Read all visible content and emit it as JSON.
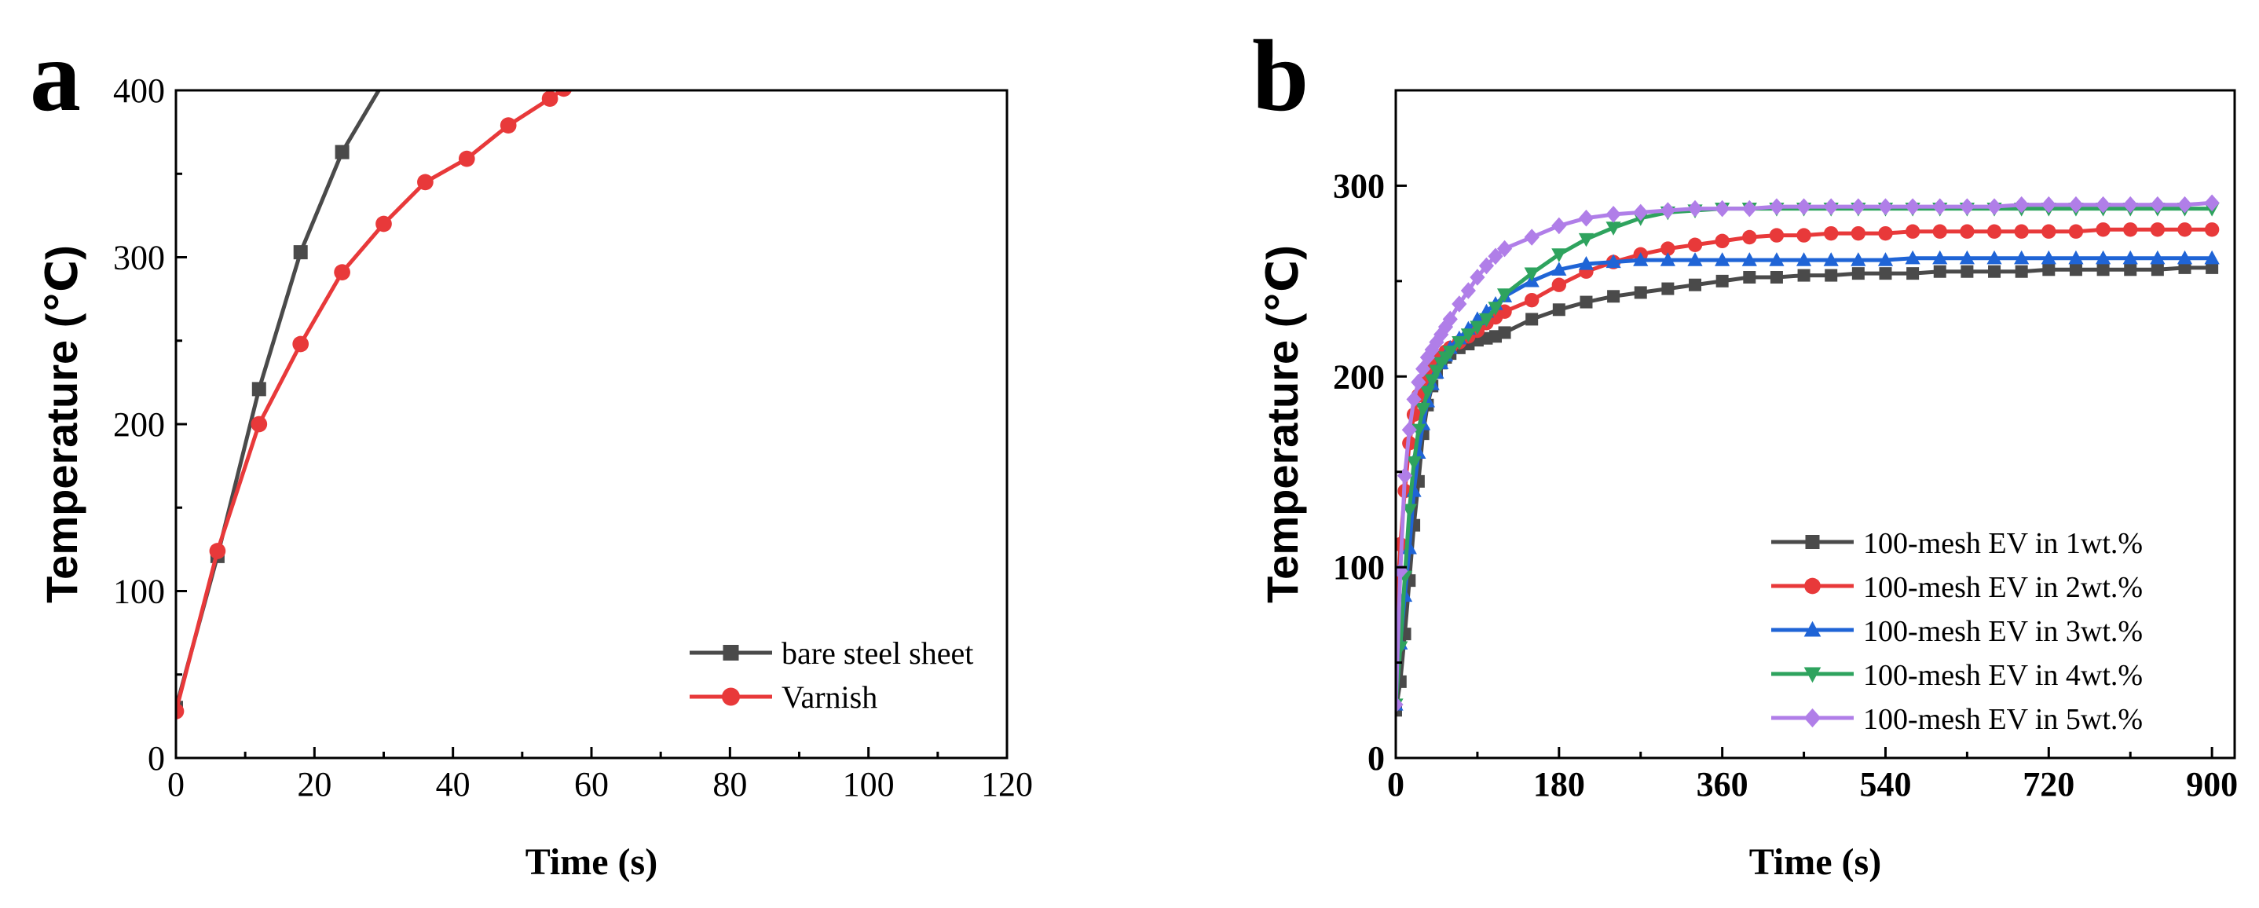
{
  "chart_data": [
    {
      "panel_label": "a",
      "type": "line",
      "title": "",
      "xlabel": "Time (s)",
      "ylabel": "Temperature (℃)",
      "xlim": [
        0,
        120
      ],
      "ylim": [
        0,
        400
      ],
      "xticks": [
        0,
        20,
        40,
        60,
        80,
        100,
        120
      ],
      "yticks": [
        0,
        100,
        200,
        300,
        400
      ],
      "grid": false,
      "legend_position": "bottom-right",
      "series": [
        {
          "name": "bare steel sheet",
          "color": "#4a4a4a",
          "marker": "square",
          "x": [
            0,
            6,
            12,
            18,
            24,
            30
          ],
          "y": [
            30,
            121,
            221,
            303,
            363,
            405
          ]
        },
        {
          "name": "Varnish",
          "color": "#e8393a",
          "marker": "circle",
          "x": [
            0,
            6,
            12,
            18,
            24,
            30,
            36,
            42,
            48,
            54,
            56
          ],
          "y": [
            28,
            124,
            200,
            248,
            291,
            320,
            345,
            359,
            379,
            395,
            401
          ]
        }
      ]
    },
    {
      "panel_label": "b",
      "type": "line",
      "title": "",
      "xlabel": "Time (s)",
      "ylabel": "Temperature (℃)",
      "xlim": [
        0,
        925
      ],
      "ylim": [
        0,
        350
      ],
      "xticks": [
        0,
        180,
        360,
        540,
        720,
        900
      ],
      "yticks": [
        0,
        100,
        200,
        300
      ],
      "grid": false,
      "legend_position": "bottom-right",
      "series": [
        {
          "name": "100-mesh EV in 1wt.%",
          "color": "#4a4a4a",
          "marker": "square",
          "x": [
            0,
            5,
            10,
            15,
            20,
            25,
            30,
            35,
            40,
            45,
            50,
            55,
            60,
            70,
            80,
            90,
            100,
            110,
            120,
            150,
            180,
            210,
            240,
            270,
            300,
            330,
            360,
            390,
            420,
            450,
            480,
            510,
            540,
            570,
            600,
            630,
            660,
            690,
            720,
            750,
            780,
            810,
            840,
            870,
            900
          ],
          "y": [
            25,
            40,
            65,
            93,
            122,
            145,
            170,
            185,
            195,
            202,
            207,
            210,
            212,
            215,
            217,
            219,
            220,
            221,
            223,
            230,
            235,
            239,
            242,
            244,
            246,
            248,
            250,
            252,
            252,
            253,
            253,
            254,
            254,
            254,
            255,
            255,
            255,
            255,
            256,
            256,
            256,
            256,
            256,
            257,
            257
          ]
        },
        {
          "name": "100-mesh EV in 2wt.%",
          "color": "#e8393a",
          "marker": "circle",
          "x": [
            0,
            5,
            10,
            15,
            20,
            25,
            30,
            35,
            40,
            45,
            50,
            55,
            60,
            70,
            80,
            90,
            100,
            110,
            120,
            150,
            180,
            210,
            240,
            270,
            300,
            330,
            360,
            390,
            420,
            450,
            480,
            510,
            540,
            570,
            600,
            630,
            660,
            690,
            720,
            750,
            780,
            810,
            840,
            870,
            900
          ],
          "y": [
            65,
            112,
            140,
            165,
            180,
            190,
            197,
            202,
            206,
            209,
            211,
            213,
            215,
            218,
            221,
            224,
            228,
            231,
            234,
            240,
            248,
            255,
            260,
            264,
            267,
            269,
            271,
            273,
            274,
            274,
            275,
            275,
            275,
            276,
            276,
            276,
            276,
            276,
            276,
            276,
            277,
            277,
            277,
            277,
            277
          ]
        },
        {
          "name": "100-mesh EV in 3wt.%",
          "color": "#1f64d6",
          "marker": "triangle-up",
          "x": [
            0,
            5,
            10,
            15,
            20,
            25,
            30,
            35,
            40,
            45,
            50,
            55,
            60,
            70,
            80,
            90,
            100,
            110,
            120,
            150,
            180,
            210,
            240,
            270,
            300,
            330,
            360,
            390,
            420,
            450,
            480,
            510,
            540,
            570,
            600,
            630,
            660,
            690,
            720,
            750,
            780,
            810,
            840,
            870,
            900
          ],
          "y": [
            28,
            60,
            85,
            110,
            140,
            160,
            175,
            187,
            196,
            202,
            207,
            211,
            215,
            220,
            225,
            230,
            234,
            238,
            242,
            250,
            256,
            259,
            260,
            261,
            261,
            261,
            261,
            261,
            261,
            261,
            261,
            261,
            261,
            262,
            262,
            262,
            262,
            262,
            262,
            262,
            262,
            262,
            262,
            262,
            262
          ]
        },
        {
          "name": "100-mesh EV in 4wt.%",
          "color": "#2ea35e",
          "marker": "triangle-down",
          "x": [
            0,
            5,
            10,
            15,
            20,
            25,
            30,
            35,
            40,
            45,
            50,
            55,
            60,
            70,
            80,
            90,
            100,
            110,
            120,
            150,
            180,
            210,
            240,
            270,
            300,
            330,
            360,
            390,
            420,
            450,
            480,
            510,
            540,
            570,
            600,
            630,
            660,
            690,
            720,
            750,
            780,
            810,
            840,
            870,
            900
          ],
          "y": [
            28,
            58,
            95,
            130,
            155,
            172,
            183,
            192,
            198,
            203,
            207,
            210,
            213,
            218,
            222,
            226,
            230,
            236,
            243,
            254,
            264,
            272,
            278,
            283,
            286,
            287,
            288,
            288,
            288,
            288,
            288,
            288,
            288,
            288,
            288,
            288,
            288,
            288,
            288,
            288,
            288,
            288,
            288,
            288,
            288
          ]
        },
        {
          "name": "100-mesh EV in 5wt.%",
          "color": "#b07ee8",
          "marker": "diamond",
          "x": [
            0,
            5,
            10,
            15,
            20,
            25,
            30,
            35,
            40,
            45,
            50,
            55,
            60,
            70,
            80,
            90,
            100,
            110,
            120,
            150,
            180,
            210,
            240,
            270,
            300,
            330,
            360,
            390,
            420,
            450,
            480,
            510,
            540,
            570,
            600,
            630,
            660,
            690,
            720,
            750,
            780,
            810,
            840,
            870,
            900
          ],
          "y": [
            28,
            98,
            148,
            172,
            188,
            197,
            204,
            210,
            214,
            218,
            222,
            226,
            230,
            238,
            245,
            252,
            258,
            263,
            267,
            273,
            279,
            283,
            285,
            286,
            287,
            288,
            288,
            288,
            289,
            289,
            289,
            289,
            289,
            289,
            289,
            289,
            289,
            290,
            290,
            290,
            290,
            290,
            290,
            290,
            291
          ]
        }
      ]
    }
  ]
}
